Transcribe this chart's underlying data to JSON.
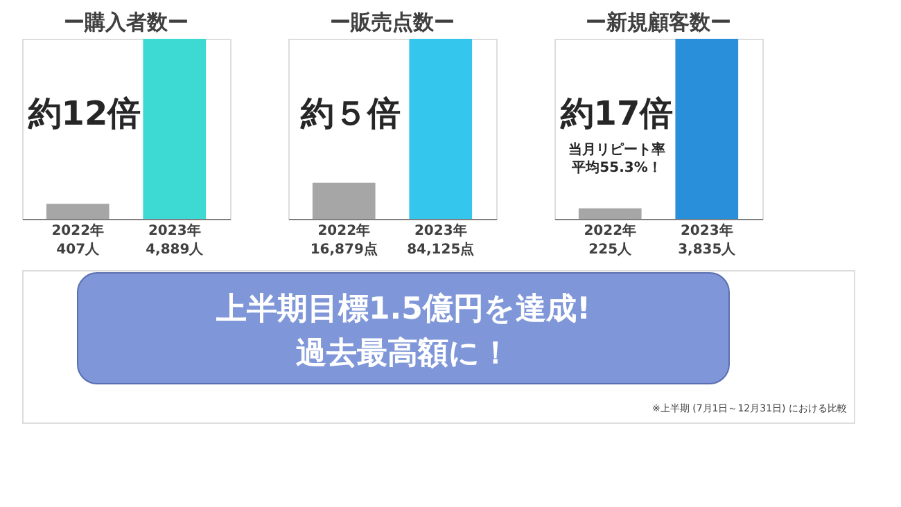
{
  "chart_data": [
    {
      "type": "bar",
      "title": "ー購入者数ー",
      "categories": [
        "2022年",
        "2023年"
      ],
      "values": [
        407,
        4889
      ],
      "value_labels": [
        "407人",
        "4,889人"
      ],
      "colors": [
        "#a6a6a6",
        "#3dd9d3"
      ],
      "annotations": [
        "約12倍"
      ]
    },
    {
      "type": "bar",
      "title": "ー販売点数ー",
      "categories": [
        "2022年",
        "2023年"
      ],
      "values": [
        16879,
        84125
      ],
      "value_labels": [
        "16,879点",
        "84,125点"
      ],
      "colors": [
        "#a6a6a6",
        "#35c6ee"
      ],
      "annotations": [
        "約５倍"
      ]
    },
    {
      "type": "bar",
      "title": "ー新規顧客数ー",
      "categories": [
        "2022年",
        "2023年"
      ],
      "values": [
        225,
        3835
      ],
      "value_labels": [
        "225人",
        "3,835人"
      ],
      "colors": [
        "#a6a6a6",
        "#2a8fdb"
      ],
      "annotations": [
        "約17倍",
        "当月リピート率",
        "平均55.3%！"
      ]
    },
    {
      "type": "other",
      "annotations": [
        "上半期目標1.5億円を達成!",
        "過去最高額に！",
        "※上半期 (7月1日～12月31日) における比較"
      ]
    }
  ]
}
